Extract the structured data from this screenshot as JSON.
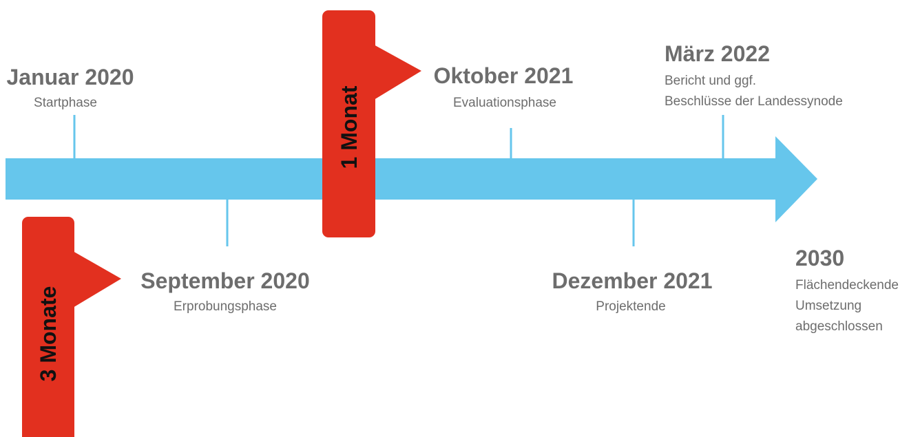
{
  "milestones": [
    {
      "title": "Januar 2020",
      "lines": [
        "Startphase"
      ]
    },
    {
      "title": "September 2020",
      "lines": [
        "Erprobungsphase"
      ]
    },
    {
      "title": "Oktober 2021",
      "lines": [
        "Evaluationsphase"
      ]
    },
    {
      "title": "Dezember 2021",
      "lines": [
        "Projektende"
      ]
    },
    {
      "title": "März 2022",
      "lines": [
        "Bericht und ggf.",
        "Beschlüsse der Landessynode"
      ]
    },
    {
      "title": "2030",
      "lines": [
        "Flächendeckende",
        "Umsetzung",
        "abgeschlossen"
      ]
    }
  ],
  "callouts": [
    {
      "label": "1 Monat"
    },
    {
      "label": "3 Monate"
    }
  ]
}
